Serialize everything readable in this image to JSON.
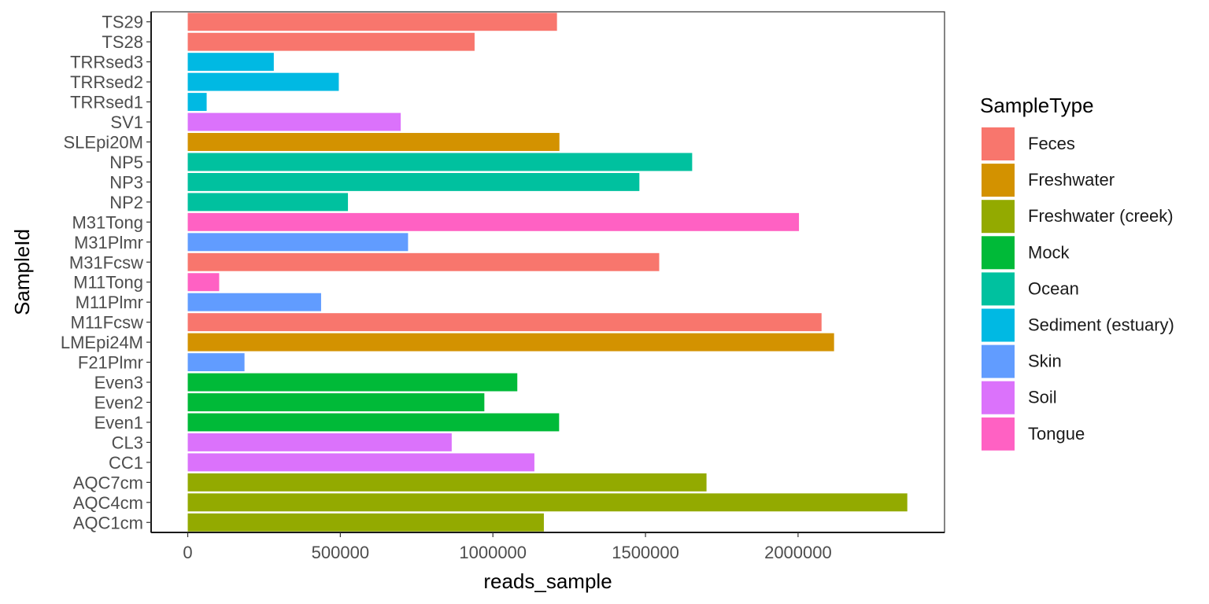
{
  "chart_data": {
    "type": "bar",
    "orientation": "horizontal",
    "xlabel": "reads_sample",
    "ylabel": "SampleId",
    "xlim": [
      -120000,
      2480000
    ],
    "xticks": [
      0,
      500000,
      1000000,
      1500000,
      2000000
    ],
    "xtick_labels": [
      "0",
      "500000",
      "1000000",
      "1500000",
      "2000000"
    ],
    "grid": false,
    "legend": {
      "title": "SampleType",
      "position": "right",
      "entries": [
        {
          "name": "Feces",
          "color": "#F8766D"
        },
        {
          "name": "Freshwater",
          "color": "#D39200"
        },
        {
          "name": "Freshwater (creek)",
          "color": "#93AA00"
        },
        {
          "name": "Mock",
          "color": "#00BA38"
        },
        {
          "name": "Ocean",
          "color": "#00C19F"
        },
        {
          "name": "Sediment (estuary)",
          "color": "#00B9E3"
        },
        {
          "name": "Skin",
          "color": "#619CFF"
        },
        {
          "name": "Soil",
          "color": "#DB72FB"
        },
        {
          "name": "Tongue",
          "color": "#FF61C3"
        }
      ]
    },
    "bars": [
      {
        "category": "TS29",
        "value": 1210000,
        "type": "Feces"
      },
      {
        "category": "TS28",
        "value": 940000,
        "type": "Feces"
      },
      {
        "category": "TRRsed3",
        "value": 282000,
        "type": "Sediment (estuary)"
      },
      {
        "category": "TRRsed2",
        "value": 495000,
        "type": "Sediment (estuary)"
      },
      {
        "category": "TRRsed1",
        "value": 62000,
        "type": "Sediment (estuary)"
      },
      {
        "category": "SV1",
        "value": 698000,
        "type": "Soil"
      },
      {
        "category": "SLEpi20M",
        "value": 1218000,
        "type": "Freshwater"
      },
      {
        "category": "NP5",
        "value": 1653000,
        "type": "Ocean"
      },
      {
        "category": "NP3",
        "value": 1480000,
        "type": "Ocean"
      },
      {
        "category": "NP2",
        "value": 525000,
        "type": "Ocean"
      },
      {
        "category": "M31Tong",
        "value": 2003000,
        "type": "Tongue"
      },
      {
        "category": "M31Plmr",
        "value": 722000,
        "type": "Skin"
      },
      {
        "category": "M31Fcsw",
        "value": 1545000,
        "type": "Feces"
      },
      {
        "category": "M11Tong",
        "value": 103000,
        "type": "Tongue"
      },
      {
        "category": "M11Plmr",
        "value": 437000,
        "type": "Skin"
      },
      {
        "category": "M11Fcsw",
        "value": 2077000,
        "type": "Feces"
      },
      {
        "category": "LMEpi24M",
        "value": 2118000,
        "type": "Freshwater"
      },
      {
        "category": "F21Plmr",
        "value": 186000,
        "type": "Skin"
      },
      {
        "category": "Even3",
        "value": 1080000,
        "type": "Mock"
      },
      {
        "category": "Even2",
        "value": 972000,
        "type": "Mock"
      },
      {
        "category": "Even1",
        "value": 1217000,
        "type": "Mock"
      },
      {
        "category": "CL3",
        "value": 865000,
        "type": "Soil"
      },
      {
        "category": "CC1",
        "value": 1136000,
        "type": "Soil"
      },
      {
        "category": "AQC7cm",
        "value": 1700000,
        "type": "Freshwater (creek)"
      },
      {
        "category": "AQC4cm",
        "value": 2358000,
        "type": "Freshwater (creek)"
      },
      {
        "category": "AQC1cm",
        "value": 1167000,
        "type": "Freshwater (creek)"
      }
    ]
  }
}
